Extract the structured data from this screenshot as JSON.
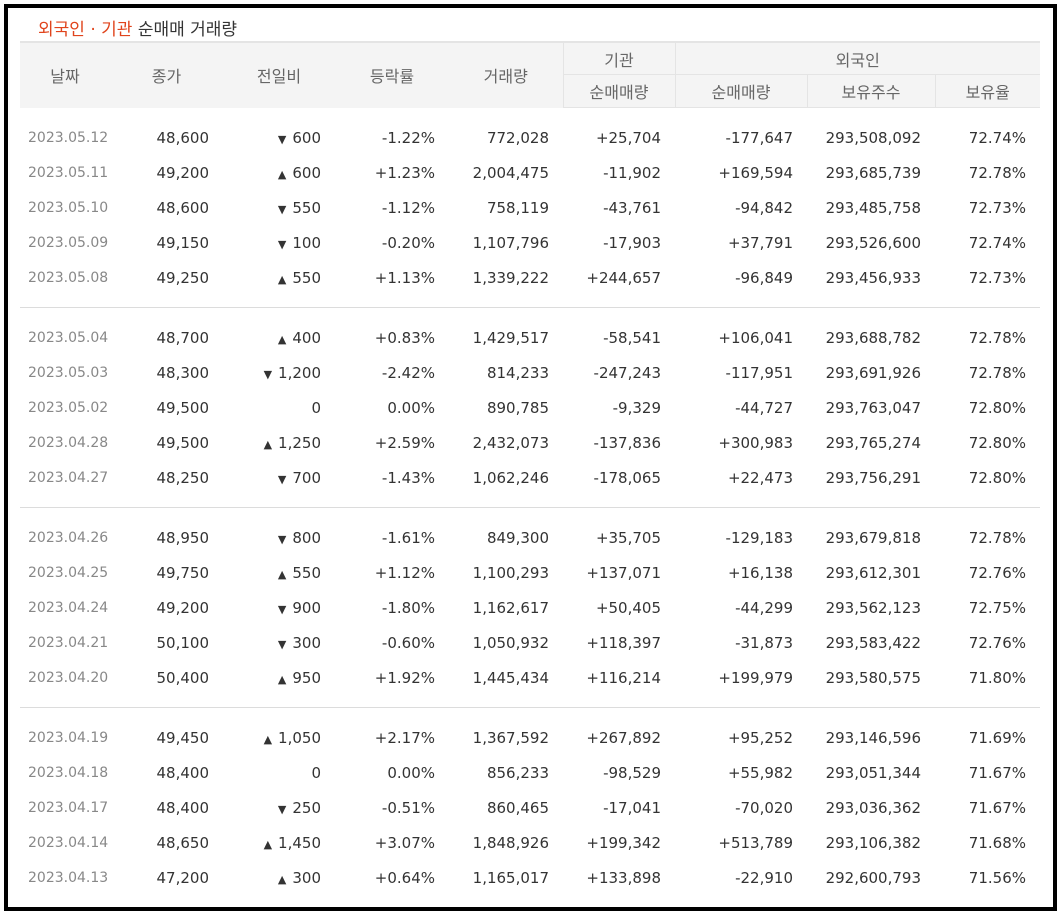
{
  "title": {
    "highlight": "외국인 · 기관",
    "rest": " 순매매 거래량"
  },
  "headers": {
    "date": "날짜",
    "close": "종가",
    "change": "전일비",
    "rate": "등락률",
    "volume": "거래량",
    "institution": "기관",
    "foreign": "외국인",
    "inst_net": "순매매량",
    "foreign_net": "순매매량",
    "holdings": "보유주수",
    "ratio": "보유율"
  },
  "colors": {
    "up": "#d30000",
    "down": "#1a5dcc",
    "title_accent": "#e0441c"
  },
  "icons": {
    "up": "triangle-up-icon",
    "down": "triangle-down-icon"
  },
  "groups": [
    [
      {
        "date": "2023.05.12",
        "close": "48,600",
        "dir": "down",
        "change": "600",
        "rate": "-1.22%",
        "volume": "772,028",
        "inst": "+25,704",
        "foreign": "-177,647",
        "holdings": "293,508,092",
        "ratio": "72.74%"
      },
      {
        "date": "2023.05.11",
        "close": "49,200",
        "dir": "up",
        "change": "600",
        "rate": "+1.23%",
        "volume": "2,004,475",
        "inst": "-11,902",
        "foreign": "+169,594",
        "holdings": "293,685,739",
        "ratio": "72.78%"
      },
      {
        "date": "2023.05.10",
        "close": "48,600",
        "dir": "down",
        "change": "550",
        "rate": "-1.12%",
        "volume": "758,119",
        "inst": "-43,761",
        "foreign": "-94,842",
        "holdings": "293,485,758",
        "ratio": "72.73%"
      },
      {
        "date": "2023.05.09",
        "close": "49,150",
        "dir": "down",
        "change": "100",
        "rate": "-0.20%",
        "volume": "1,107,796",
        "inst": "-17,903",
        "foreign": "+37,791",
        "holdings": "293,526,600",
        "ratio": "72.74%"
      },
      {
        "date": "2023.05.08",
        "close": "49,250",
        "dir": "up",
        "change": "550",
        "rate": "+1.13%",
        "volume": "1,339,222",
        "inst": "+244,657",
        "foreign": "-96,849",
        "holdings": "293,456,933",
        "ratio": "72.73%"
      }
    ],
    [
      {
        "date": "2023.05.04",
        "close": "48,700",
        "dir": "up",
        "change": "400",
        "rate": "+0.83%",
        "volume": "1,429,517",
        "inst": "-58,541",
        "foreign": "+106,041",
        "holdings": "293,688,782",
        "ratio": "72.78%"
      },
      {
        "date": "2023.05.03",
        "close": "48,300",
        "dir": "down",
        "change": "1,200",
        "rate": "-2.42%",
        "volume": "814,233",
        "inst": "-247,243",
        "foreign": "-117,951",
        "holdings": "293,691,926",
        "ratio": "72.78%"
      },
      {
        "date": "2023.05.02",
        "close": "49,500",
        "dir": "flat",
        "change": "0",
        "rate": "0.00%",
        "volume": "890,785",
        "inst": "-9,329",
        "foreign": "-44,727",
        "holdings": "293,763,047",
        "ratio": "72.80%"
      },
      {
        "date": "2023.04.28",
        "close": "49,500",
        "dir": "up",
        "change": "1,250",
        "rate": "+2.59%",
        "volume": "2,432,073",
        "inst": "-137,836",
        "foreign": "+300,983",
        "holdings": "293,765,274",
        "ratio": "72.80%"
      },
      {
        "date": "2023.04.27",
        "close": "48,250",
        "dir": "down",
        "change": "700",
        "rate": "-1.43%",
        "volume": "1,062,246",
        "inst": "-178,065",
        "foreign": "+22,473",
        "holdings": "293,756,291",
        "ratio": "72.80%"
      }
    ],
    [
      {
        "date": "2023.04.26",
        "close": "48,950",
        "dir": "down",
        "change": "800",
        "rate": "-1.61%",
        "volume": "849,300",
        "inst": "+35,705",
        "foreign": "-129,183",
        "holdings": "293,679,818",
        "ratio": "72.78%"
      },
      {
        "date": "2023.04.25",
        "close": "49,750",
        "dir": "up",
        "change": "550",
        "rate": "+1.12%",
        "volume": "1,100,293",
        "inst": "+137,071",
        "foreign": "+16,138",
        "holdings": "293,612,301",
        "ratio": "72.76%"
      },
      {
        "date": "2023.04.24",
        "close": "49,200",
        "dir": "down",
        "change": "900",
        "rate": "-1.80%",
        "volume": "1,162,617",
        "inst": "+50,405",
        "foreign": "-44,299",
        "holdings": "293,562,123",
        "ratio": "72.75%"
      },
      {
        "date": "2023.04.21",
        "close": "50,100",
        "dir": "down",
        "change": "300",
        "rate": "-0.60%",
        "volume": "1,050,932",
        "inst": "+118,397",
        "foreign": "-31,873",
        "holdings": "293,583,422",
        "ratio": "72.76%"
      },
      {
        "date": "2023.04.20",
        "close": "50,400",
        "dir": "up",
        "change": "950",
        "rate": "+1.92%",
        "volume": "1,445,434",
        "inst": "+116,214",
        "foreign": "+199,979",
        "holdings": "293,580,575",
        "ratio": "71.80%"
      }
    ],
    [
      {
        "date": "2023.04.19",
        "close": "49,450",
        "dir": "up",
        "change": "1,050",
        "rate": "+2.17%",
        "volume": "1,367,592",
        "inst": "+267,892",
        "foreign": "+95,252",
        "holdings": "293,146,596",
        "ratio": "71.69%"
      },
      {
        "date": "2023.04.18",
        "close": "48,400",
        "dir": "flat",
        "change": "0",
        "rate": "0.00%",
        "volume": "856,233",
        "inst": "-98,529",
        "foreign": "+55,982",
        "holdings": "293,051,344",
        "ratio": "71.67%"
      },
      {
        "date": "2023.04.17",
        "close": "48,400",
        "dir": "down",
        "change": "250",
        "rate": "-0.51%",
        "volume": "860,465",
        "inst": "-17,041",
        "foreign": "-70,020",
        "holdings": "293,036,362",
        "ratio": "71.67%"
      },
      {
        "date": "2023.04.14",
        "close": "48,650",
        "dir": "up",
        "change": "1,450",
        "rate": "+3.07%",
        "volume": "1,848,926",
        "inst": "+199,342",
        "foreign": "+513,789",
        "holdings": "293,106,382",
        "ratio": "71.68%"
      },
      {
        "date": "2023.04.13",
        "close": "47,200",
        "dir": "up",
        "change": "300",
        "rate": "+0.64%",
        "volume": "1,165,017",
        "inst": "+133,898",
        "foreign": "-22,910",
        "holdings": "292,600,793",
        "ratio": "71.56%"
      }
    ]
  ]
}
